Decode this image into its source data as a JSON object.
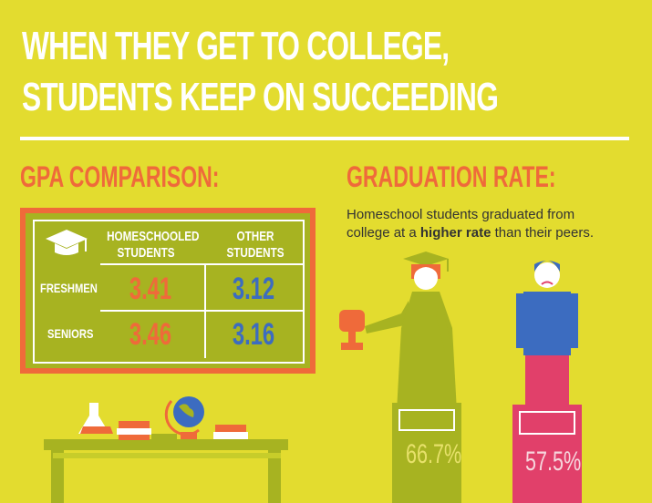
{
  "header": {
    "title_lines": [
      "WHEN THEY GET TO COLLEGE,",
      "STUDENTS KEEP ON SUCCEEDING"
    ]
  },
  "gpa": {
    "title": "GPA COMPARISON:",
    "columns": [
      [
        "HOMESCHOOLED",
        "STUDENTS"
      ],
      [
        "OTHER",
        "STUDENTS"
      ]
    ],
    "rows": [
      {
        "label": "FRESHMEN",
        "values": [
          "3.41",
          "3.12"
        ]
      },
      {
        "label": "SENIORS",
        "values": [
          "3.46",
          "3.16"
        ]
      }
    ]
  },
  "graduation": {
    "title": "GRADUATION RATE:",
    "text_parts": [
      "Homeschool students graduated from college at a ",
      "higher rate",
      " than their peers."
    ],
    "homeschool_rate": "66.7%",
    "peer_rate": "57.5%"
  }
}
